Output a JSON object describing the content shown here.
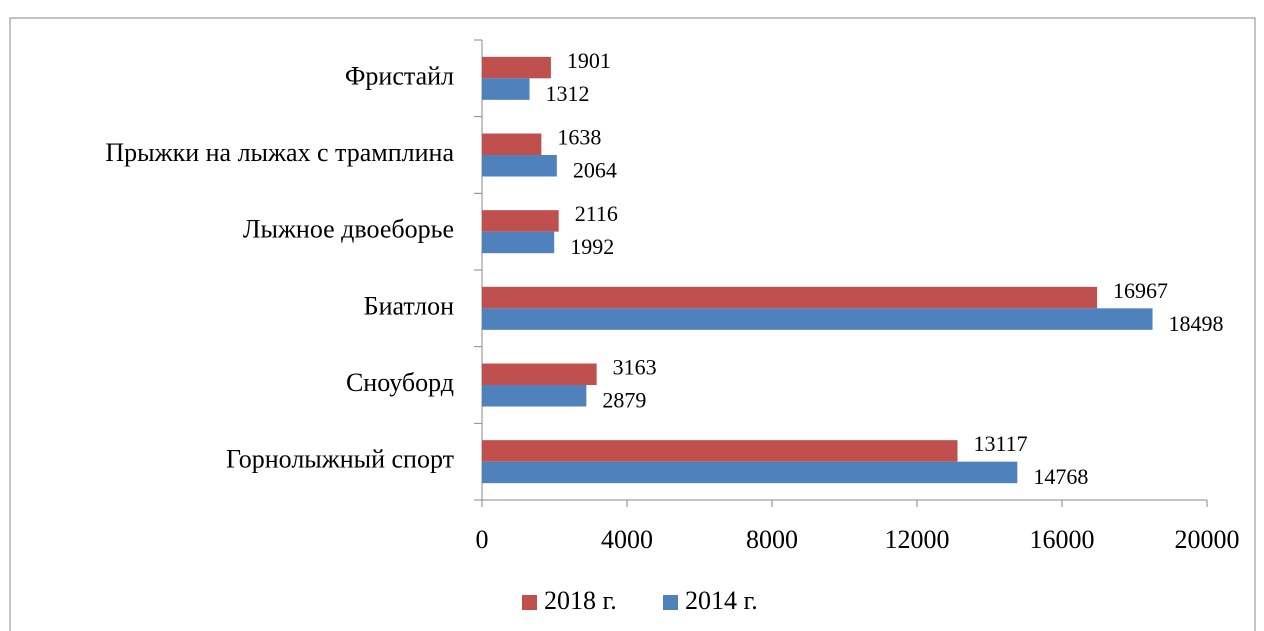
{
  "chart_data": {
    "type": "bar",
    "orientation": "horizontal",
    "categories": [
      "Фристайл",
      "Прыжки на лыжах с трамплина",
      "Лыжное двоеборье",
      "Биатлон",
      "Сноуборд",
      "Горнолыжный спорт"
    ],
    "series": [
      {
        "name": "2018 г.",
        "color": "#c0504d",
        "values": [
          1901,
          1638,
          2116,
          16967,
          3163,
          13117
        ]
      },
      {
        "name": "2014 г.",
        "color": "#4f81bd",
        "values": [
          1312,
          2064,
          1992,
          18498,
          2879,
          14768
        ]
      }
    ],
    "xlim": [
      0,
      20000
    ],
    "xticks": [
      0,
      4000,
      8000,
      12000,
      16000,
      20000
    ],
    "grid": false,
    "legend": "bottom"
  }
}
